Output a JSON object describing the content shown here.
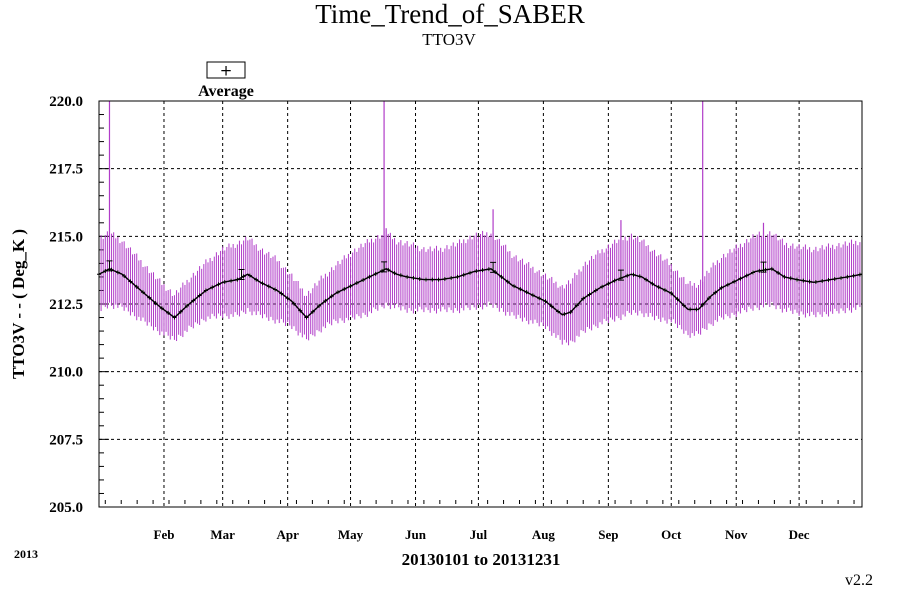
{
  "chart_data": {
    "type": "line",
    "title": "Time_Trend_of_SABER",
    "subtitle": "TTO3V",
    "ylabel": "TTO3V  - - ( Deg_K )",
    "xlabel": "20130101 to 20131231",
    "ylim": [
      205.0,
      220.0
    ],
    "yticks": [
      "205.0",
      "207.5",
      "210.0",
      "212.5",
      "215.0",
      "217.5",
      "220.0"
    ],
    "xlim_day_of_year": [
      1,
      365
    ],
    "months": [
      "Feb",
      "Mar",
      "Apr",
      "May",
      "Jun",
      "Jul",
      "Aug",
      "Sep",
      "Oct",
      "Nov",
      "Dec"
    ],
    "grid": true,
    "legend": {
      "label": "Average",
      "marker": "+",
      "placement": "top-left"
    },
    "series": [
      {
        "name": "Average",
        "day_of_year": [
          1,
          6,
          12,
          18,
          24,
          30,
          37,
          44,
          52,
          60,
          67,
          72,
          78,
          86,
          93,
          100,
          107,
          114,
          122,
          130,
          138,
          143,
          148,
          156,
          164,
          172,
          180,
          188,
          193,
          198,
          206,
          214,
          222,
          226,
          232,
          240,
          248,
          255,
          260,
          266,
          274,
          282,
          287,
          293,
          298,
          306,
          314,
          322,
          328,
          334,
          342,
          350,
          358,
          365
        ],
        "values": [
          213.6,
          213.8,
          213.6,
          213.2,
          212.8,
          212.4,
          212.0,
          212.5,
          213.0,
          213.3,
          213.4,
          213.6,
          213.3,
          213.0,
          212.6,
          212.0,
          212.5,
          212.9,
          213.2,
          213.5,
          213.8,
          213.6,
          213.5,
          213.4,
          213.4,
          213.5,
          213.7,
          213.8,
          213.5,
          213.2,
          212.9,
          212.6,
          212.1,
          212.2,
          212.7,
          213.1,
          213.4,
          213.6,
          213.5,
          213.2,
          212.9,
          212.3,
          212.3,
          212.8,
          213.1,
          213.4,
          213.7,
          213.8,
          213.5,
          213.4,
          213.3,
          213.4,
          213.5,
          213.6
        ],
        "spread_halfwidth": [
          1.2,
          1.2,
          1.1,
          1.0,
          0.9,
          0.8,
          0.7,
          0.8,
          0.9,
          1.1,
          1.2,
          1.2,
          1.1,
          1.0,
          0.8,
          0.7,
          0.8,
          0.9,
          1.1,
          1.2,
          1.2,
          1.1,
          1.1,
          1.0,
          1.0,
          1.1,
          1.2,
          1.2,
          1.1,
          1.0,
          0.9,
          0.8,
          0.9,
          1.0,
          1.1,
          1.2,
          1.3,
          1.3,
          1.2,
          1.1,
          0.9,
          0.8,
          0.8,
          0.9,
          1.0,
          1.1,
          1.2,
          1.2,
          1.1,
          1.1,
          1.1,
          1.1,
          1.1,
          1.1
        ],
        "spikes": [
          {
            "day_of_year": 6,
            "top": 220.0
          },
          {
            "day_of_year": 137,
            "top": 220.0
          },
          {
            "day_of_year": 138,
            "top": 215.3
          },
          {
            "day_of_year": 189,
            "top": 216.0
          },
          {
            "day_of_year": 250,
            "top": 215.6
          },
          {
            "day_of_year": 289,
            "top": 220.0
          },
          {
            "day_of_year": 318,
            "top": 215.5
          }
        ],
        "marked_days": [
          6,
          69,
          137,
          189,
          250,
          318
        ]
      }
    ]
  },
  "footer": {
    "year": "2013",
    "version": "v2.2"
  },
  "colors": {
    "spread": "#b03cc8",
    "average": "#000000",
    "grid": "#000000"
  }
}
